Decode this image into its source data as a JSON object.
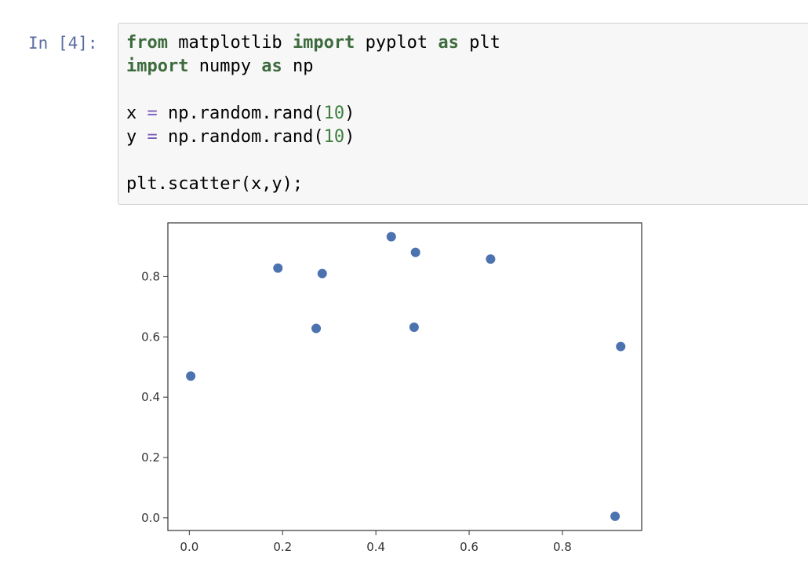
{
  "cell": {
    "prompt": "In [4]:",
    "code_lines": [
      [
        {
          "t": "from",
          "c": "kw"
        },
        {
          "t": " matplotlib ",
          "c": ""
        },
        {
          "t": "import",
          "c": "kw"
        },
        {
          "t": " pyplot ",
          "c": ""
        },
        {
          "t": "as",
          "c": "kw"
        },
        {
          "t": " plt",
          "c": ""
        }
      ],
      [
        {
          "t": "import",
          "c": "kw"
        },
        {
          "t": " numpy ",
          "c": ""
        },
        {
          "t": "as",
          "c": "kw"
        },
        {
          "t": " np",
          "c": ""
        }
      ],
      [],
      [
        {
          "t": "x ",
          "c": ""
        },
        {
          "t": "=",
          "c": "op"
        },
        {
          "t": " np.random.rand(",
          "c": ""
        },
        {
          "t": "10",
          "c": "num"
        },
        {
          "t": ")",
          "c": ""
        }
      ],
      [
        {
          "t": "y ",
          "c": ""
        },
        {
          "t": "=",
          "c": "op"
        },
        {
          "t": " np.random.rand(",
          "c": ""
        },
        {
          "t": "10",
          "c": "num"
        },
        {
          "t": ")",
          "c": ""
        }
      ],
      [],
      [
        {
          "t": "plt.scatter(x,y);",
          "c": ""
        }
      ]
    ]
  },
  "chart_data": {
    "type": "scatter",
    "x": [
      0.003,
      0.19,
      0.272,
      0.285,
      0.433,
      0.482,
      0.485,
      0.646,
      0.913,
      0.925
    ],
    "y": [
      0.47,
      0.828,
      0.628,
      0.81,
      0.932,
      0.632,
      0.88,
      0.858,
      0.005,
      0.568
    ],
    "xlim": [
      -0.046,
      0.97
    ],
    "ylim": [
      -0.042,
      0.978
    ],
    "xticks": [
      "0.0",
      "0.2",
      "0.4",
      "0.6",
      "0.8"
    ],
    "xtick_values": [
      0.0,
      0.2,
      0.4,
      0.6,
      0.8
    ],
    "yticks": [
      "0.0",
      "0.2",
      "0.4",
      "0.6",
      "0.8"
    ],
    "ytick_values": [
      0.0,
      0.2,
      0.4,
      0.6,
      0.8
    ],
    "title": "",
    "xlabel": "",
    "ylabel": "",
    "grid": false,
    "marker_color": "#4c72b0"
  },
  "colors": {
    "keyword": "#3d6b3d",
    "prompt": "#5a6e9e",
    "cell_background": "#f7f7f7",
    "axes_frame": "#333333"
  }
}
